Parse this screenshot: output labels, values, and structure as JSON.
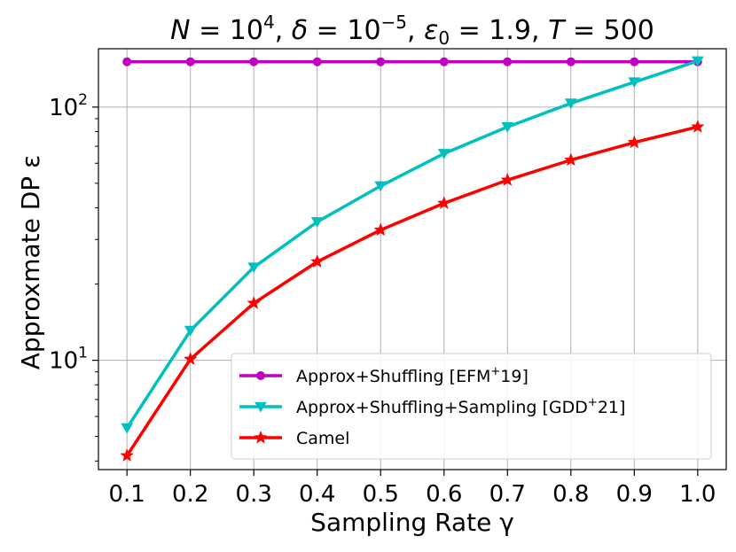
{
  "chart_data": {
    "type": "line",
    "title": {
      "n_sym": "N",
      "n_base": "10",
      "n_exp": "4",
      "delta_sym": "δ",
      "delta_base": "10",
      "delta_exp": "−5",
      "eps_sym": "ε",
      "eps_sub": "0",
      "eps_val": "1.9",
      "t_sym": "T",
      "t_val": "500"
    },
    "xlabel": "Sampling Rate γ",
    "ylabel": "Approxmate DP ε",
    "x": [
      0.1,
      0.2,
      0.3,
      0.4,
      0.5,
      0.6,
      0.7,
      0.8,
      0.9,
      1.0
    ],
    "x_tick_labels": [
      "0.1",
      "0.2",
      "0.3",
      "0.4",
      "0.5",
      "0.6",
      "0.7",
      "0.8",
      "0.9",
      "1.0"
    ],
    "xlim": [
      0.055,
      1.045
    ],
    "yscale": "log",
    "ylim": [
      3.7,
      170
    ],
    "y_major_ticks": [
      {
        "value": 10,
        "base": "10",
        "exp": "1"
      },
      {
        "value": 100,
        "base": "10",
        "exp": "2"
      }
    ],
    "y_minor_ticks": [
      4,
      5,
      6,
      7,
      8,
      9,
      20,
      30,
      40,
      50,
      60,
      70,
      80,
      90
    ],
    "grid": true,
    "legend_position": "lower-right",
    "series": [
      {
        "name": "Approx+Shuffling [EFM",
        "name_sup": "+",
        "name_tail": "19]",
        "color": "#bf00bf",
        "marker": "circle",
        "values": [
          151,
          151,
          151,
          151,
          151,
          151,
          151,
          151,
          151,
          151
        ]
      },
      {
        "name": "Approx+Shuffling+Sampling [GDD",
        "name_sup": "+",
        "name_tail": "21]",
        "color": "#00bfbf",
        "marker": "triangle-down",
        "values": [
          5.4,
          13.1,
          23.3,
          35.2,
          48.8,
          65.5,
          83.5,
          103.5,
          125.5,
          152
        ]
      },
      {
        "name": "Camel",
        "name_sup": "",
        "name_tail": "",
        "color": "#ff0000",
        "marker": "star",
        "values": [
          4.2,
          10.1,
          16.8,
          24.5,
          32.7,
          41.7,
          51.5,
          61.8,
          72.5,
          83.5
        ]
      }
    ]
  }
}
